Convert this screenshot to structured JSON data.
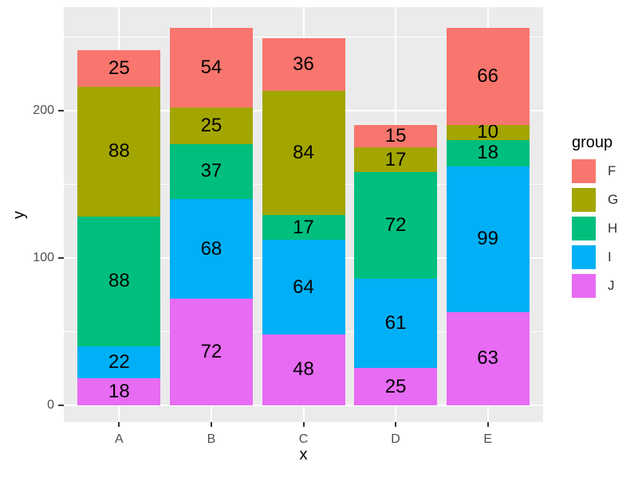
{
  "figure": {
    "background": "#FFFFFF",
    "panel_background": "#EBEBEB",
    "gridline_color": "#FFFFFF",
    "axis_text_color": "#4D4D4D",
    "axis_title_color": "#000000",
    "bar_label_color": "#000000",
    "tick_mark_color": "#333333"
  },
  "chart_data": {
    "type": "bar",
    "stacked": true,
    "xlabel": "x",
    "ylabel": "y",
    "categories": [
      "A",
      "B",
      "C",
      "D",
      "E"
    ],
    "series": [
      {
        "name": "F",
        "color": "#F8766D",
        "values": [
          25,
          54,
          36,
          15,
          66
        ]
      },
      {
        "name": "G",
        "color": "#A3A500",
        "values": [
          88,
          25,
          84,
          17,
          10
        ]
      },
      {
        "name": "H",
        "color": "#00BF7D",
        "values": [
          88,
          37,
          17,
          72,
          18
        ]
      },
      {
        "name": "I",
        "color": "#00B0F6",
        "values": [
          22,
          68,
          64,
          61,
          99
        ]
      },
      {
        "name": "J",
        "color": "#E76BF3",
        "values": [
          18,
          72,
          48,
          25,
          63
        ]
      }
    ],
    "stack_order_bottom_to_top": [
      "J",
      "I",
      "H",
      "G",
      "F"
    ],
    "bar_labels": true,
    "y_ticks": [
      {
        "value": 0,
        "label": "0"
      },
      {
        "value": 100,
        "label": "100"
      },
      {
        "value": 200,
        "label": "200"
      }
    ],
    "y_minor_gridlines": [
      50,
      150,
      250
    ],
    "ylim": [
      -11.5,
      270
    ],
    "grid": true,
    "legend_title": "group",
    "legend_position": "right",
    "legend_entries": [
      "F",
      "G",
      "H",
      "I",
      "J"
    ]
  }
}
